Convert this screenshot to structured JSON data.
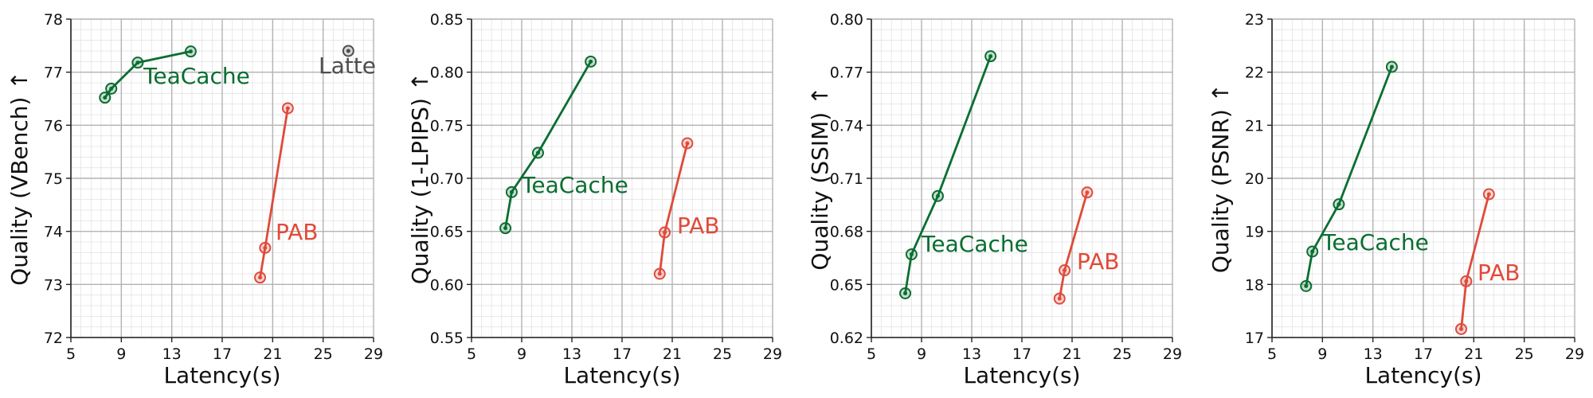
{
  "colors": {
    "teacache": "#0a6e31",
    "pab": "#e04a3a",
    "latte": "#4d4d4d",
    "grid_major": "#b3b3b3",
    "grid_minor": "#e3e3e3",
    "axis": "#222222"
  },
  "chart_data": [
    {
      "type": "line",
      "xlabel": "Latency(s)",
      "ylabel": "Quality (VBench)  ↑",
      "xlim": [
        5,
        29
      ],
      "ylim": [
        72,
        78
      ],
      "xticks": [
        5,
        9,
        13,
        17,
        21,
        25,
        29
      ],
      "yticks": [
        "72",
        "73",
        "74",
        "75",
        "76",
        "77",
        "78"
      ],
      "grid": true,
      "series": [
        {
          "name": "TeaCache",
          "color_key": "teacache",
          "x": [
            7.7,
            8.2,
            10.3,
            14.5
          ],
          "y": [
            76.52,
            76.69,
            77.18,
            77.39
          ]
        },
        {
          "name": "PAB",
          "color_key": "pab",
          "x": [
            20.0,
            20.4,
            22.2
          ],
          "y": [
            73.13,
            73.69,
            76.32
          ]
        },
        {
          "name": "Latte",
          "color_key": "latte",
          "x": [
            27.0
          ],
          "y": [
            77.4
          ]
        }
      ]
    },
    {
      "type": "line",
      "xlabel": "Latency(s)",
      "ylabel": "Quality (1-LPIPS)  ↑",
      "xlim": [
        5,
        29
      ],
      "ylim": [
        0.55,
        0.85
      ],
      "xticks": [
        5,
        9,
        13,
        17,
        21,
        25,
        29
      ],
      "yticks": [
        "0.55",
        "0.60",
        "0.65",
        "0.70",
        "0.75",
        "0.80",
        "0.85"
      ],
      "grid": true,
      "series": [
        {
          "name": "TeaCache",
          "color_key": "teacache",
          "x": [
            7.7,
            8.2,
            10.3,
            14.5
          ],
          "y": [
            0.653,
            0.687,
            0.724,
            0.81
          ]
        },
        {
          "name": "PAB",
          "color_key": "pab",
          "x": [
            20.0,
            20.4,
            22.2
          ],
          "y": [
            0.61,
            0.649,
            0.733
          ]
        }
      ]
    },
    {
      "type": "line",
      "xlabel": "Latency(s)",
      "ylabel": "Quality (SSIM)  ↑",
      "xlim": [
        5,
        29
      ],
      "ylim": [
        0.62,
        0.8
      ],
      "xticks": [
        5,
        9,
        13,
        17,
        21,
        25,
        29
      ],
      "yticks": [
        "0.62",
        "0.65",
        "0.68",
        "0.71",
        "0.74",
        "0.77",
        "0.80"
      ],
      "grid": true,
      "series": [
        {
          "name": "TeaCache",
          "color_key": "teacache",
          "x": [
            7.7,
            8.2,
            10.3,
            14.5
          ],
          "y": [
            0.645,
            0.667,
            0.7,
            0.779
          ]
        },
        {
          "name": "PAB",
          "color_key": "pab",
          "x": [
            20.0,
            20.4,
            22.2
          ],
          "y": [
            0.642,
            0.658,
            0.702
          ]
        }
      ]
    },
    {
      "type": "line",
      "xlabel": "Latency(s)",
      "ylabel": "Quality (PSNR)  ↑",
      "xlim": [
        5,
        29
      ],
      "ylim": [
        17,
        23
      ],
      "xticks": [
        5,
        9,
        13,
        17,
        21,
        25,
        29
      ],
      "yticks": [
        "17",
        "18",
        "19",
        "20",
        "21",
        "22",
        "23"
      ],
      "grid": true,
      "series": [
        {
          "name": "TeaCache",
          "color_key": "teacache",
          "x": [
            7.7,
            8.2,
            10.3,
            14.5
          ],
          "y": [
            17.97,
            18.62,
            19.51,
            22.1
          ]
        },
        {
          "name": "PAB",
          "color_key": "pab",
          "x": [
            20.0,
            20.4,
            22.2
          ],
          "y": [
            17.16,
            18.06,
            19.7
          ]
        }
      ]
    }
  ]
}
